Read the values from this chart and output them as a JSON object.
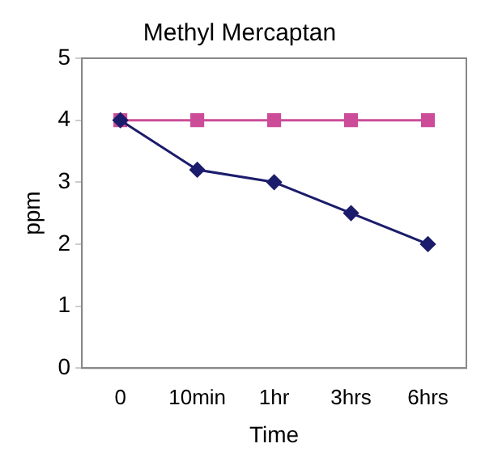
{
  "chart_data": {
    "type": "line",
    "title": "Methyl Mercaptan",
    "xlabel": "Time",
    "ylabel": "ppm",
    "categories": [
      "0",
      "10min",
      "1hr",
      "3hrs",
      "6hrs"
    ],
    "series": [
      {
        "color": "#1c1c6c",
        "values": [
          4,
          3.2,
          3,
          2.5,
          2
        ],
        "marker": "diamond"
      },
      {
        "color": "#cc4c99",
        "values": [
          4,
          4,
          4,
          4,
          4
        ],
        "marker": "square"
      }
    ],
    "ylim": [
      0,
      5
    ],
    "yticks": [
      0,
      1,
      2,
      3,
      4,
      5
    ],
    "grid": false,
    "legend": false,
    "line_style": "solid"
  }
}
